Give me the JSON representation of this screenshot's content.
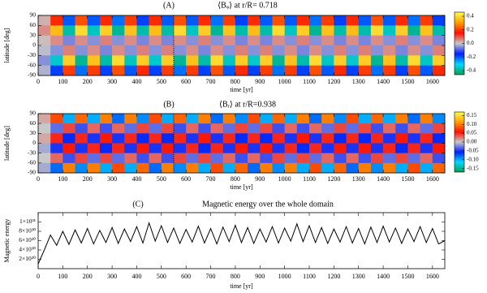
{
  "chart_data": [
    {
      "type": "heatmap",
      "label": "(A)",
      "title": "⟨Bᵩ⟩ at r/R= 0.718",
      "xlabel": "time [yr]",
      "ylabel": "latitude [deg]",
      "xlim": [
        0,
        1650
      ],
      "xticks": [
        0,
        100,
        200,
        300,
        400,
        500,
        600,
        700,
        800,
        900,
        1000,
        1100,
        1200,
        1300,
        1400,
        1500,
        1600
      ],
      "ylim": [
        -90,
        90
      ],
      "yticks": [
        -90,
        -60,
        -30,
        0,
        30,
        60,
        90
      ],
      "time_bins": [
        0,
        50,
        100,
        150,
        200,
        250,
        300,
        350,
        400,
        450,
        500,
        550,
        600,
        650,
        700,
        750,
        800,
        850,
        900,
        950,
        1000,
        1050,
        1100,
        1150,
        1200,
        1250,
        1300,
        1350,
        1400,
        1450,
        1500,
        1550,
        1600,
        1650
      ],
      "lat_edges": [
        90,
        60,
        30,
        0,
        -30,
        -60,
        -90
      ],
      "z": [
        [
          0.02,
          0.18,
          -0.2,
          0.22,
          -0.2,
          0.18,
          -0.22,
          0.2,
          -0.18,
          0.18,
          -0.2,
          0.22,
          -0.2,
          0.18,
          -0.22,
          0.2,
          -0.18,
          0.18,
          -0.2,
          0.22,
          -0.2,
          0.18,
          -0.22,
          0.2,
          -0.18,
          0.18,
          -0.2,
          0.22,
          -0.2,
          0.18,
          -0.22,
          0.2,
          -0.18
        ],
        [
          0.05,
          0.35,
          -0.38,
          0.4,
          -0.36,
          0.38,
          -0.4,
          0.36,
          -0.38,
          0.35,
          -0.38,
          0.4,
          -0.36,
          0.38,
          -0.4,
          0.36,
          -0.38,
          0.35,
          -0.38,
          0.4,
          -0.36,
          0.38,
          -0.4,
          0.36,
          -0.38,
          0.35,
          -0.38,
          0.4,
          -0.36,
          0.38,
          -0.4,
          0.36,
          -0.38
        ],
        [
          0.01,
          0.05,
          -0.06,
          0.05,
          -0.05,
          0.06,
          -0.05,
          0.05,
          -0.06,
          0.05,
          -0.06,
          0.05,
          -0.05,
          0.06,
          -0.05,
          0.05,
          -0.06,
          0.05,
          -0.06,
          0.05,
          -0.05,
          0.06,
          -0.05,
          0.05,
          -0.06,
          0.05,
          -0.06,
          0.05,
          -0.05,
          0.06,
          -0.05,
          0.05,
          -0.06
        ],
        [
          -0.01,
          -0.05,
          0.06,
          -0.05,
          0.05,
          -0.06,
          0.05,
          -0.05,
          0.06,
          -0.05,
          0.06,
          -0.05,
          0.05,
          -0.06,
          0.05,
          -0.05,
          0.06,
          -0.05,
          0.06,
          -0.05,
          0.05,
          -0.06,
          0.05,
          -0.05,
          0.06,
          -0.05,
          0.06,
          -0.05,
          0.05,
          -0.06,
          0.05,
          -0.05,
          0.06
        ],
        [
          -0.05,
          -0.35,
          0.38,
          -0.4,
          0.36,
          -0.38,
          0.4,
          -0.36,
          0.38,
          -0.35,
          0.38,
          -0.4,
          0.36,
          -0.38,
          0.4,
          -0.36,
          0.38,
          -0.35,
          0.38,
          -0.4,
          0.36,
          -0.38,
          0.4,
          -0.36,
          0.38,
          -0.35,
          0.38,
          -0.4,
          0.36,
          -0.38,
          0.4,
          -0.36,
          0.38
        ],
        [
          -0.02,
          -0.18,
          0.2,
          -0.22,
          0.2,
          -0.18,
          0.22,
          -0.2,
          0.18,
          -0.18,
          0.2,
          -0.22,
          0.2,
          -0.18,
          0.22,
          -0.2,
          0.18,
          -0.18,
          0.2,
          -0.22,
          0.2,
          -0.18,
          0.22,
          -0.2,
          0.18,
          -0.18,
          0.2,
          -0.22,
          0.2,
          -0.18,
          0.22,
          -0.2,
          0.18
        ]
      ],
      "zlim": [
        -0.46,
        0.46
      ],
      "zticks": [
        0.4,
        0.2,
        {
          "value": 0,
          "label": "0.0"
        },
        -0.2,
        -0.4
      ],
      "colors": [
        "#00a050",
        "#00d8ff",
        "#0020ff",
        "#c8c8c8",
        "#ff1000",
        "#ffa000",
        "#ffff50"
      ],
      "marker_x": 550
    },
    {
      "type": "heatmap",
      "label": "(B)",
      "title": "⟨Bᵣ⟩ at r/R=0.938",
      "xlabel": "time [yr]",
      "ylabel": "latitude [deg]",
      "xlim": [
        0,
        1650
      ],
      "xticks": [
        0,
        100,
        200,
        300,
        400,
        500,
        600,
        700,
        800,
        900,
        1000,
        1100,
        1200,
        1300,
        1400,
        1500,
        1600
      ],
      "ylim": [
        -90,
        90
      ],
      "yticks": [
        -90,
        -60,
        -30,
        0,
        30,
        60,
        90
      ],
      "time_bins": [
        0,
        50,
        100,
        150,
        200,
        250,
        300,
        350,
        400,
        450,
        500,
        550,
        600,
        650,
        700,
        750,
        800,
        850,
        900,
        950,
        1000,
        1050,
        1100,
        1150,
        1200,
        1250,
        1300,
        1350,
        1400,
        1450,
        1500,
        1550,
        1600,
        1650
      ],
      "lat_edges": [
        90,
        60,
        30,
        0,
        -30,
        -60,
        -90
      ],
      "z": [
        [
          0.01,
          0.08,
          -0.1,
          0.09,
          -0.1,
          0.1,
          -0.08,
          0.1,
          -0.09,
          0.08,
          -0.1,
          0.09,
          -0.1,
          0.1,
          -0.08,
          0.1,
          -0.09,
          0.08,
          -0.1,
          0.09,
          -0.1,
          0.1,
          -0.08,
          0.1,
          -0.09,
          0.08,
          -0.1,
          0.09,
          -0.1,
          0.1,
          -0.08,
          0.1,
          -0.09
        ],
        [
          0,
          -0.03,
          0.04,
          -0.04,
          0.03,
          -0.04,
          0.03,
          -0.03,
          0.04,
          -0.03,
          0.04,
          -0.04,
          0.03,
          -0.04,
          0.03,
          -0.03,
          0.04,
          -0.03,
          0.04,
          -0.04,
          0.03,
          -0.04,
          0.03,
          -0.03,
          0.04,
          -0.03,
          0.04,
          -0.04,
          0.03,
          -0.04,
          0.03,
          -0.03,
          0.04
        ],
        [
          0.01,
          0.05,
          -0.06,
          0.05,
          -0.05,
          0.06,
          -0.05,
          0.05,
          -0.06,
          0.05,
          -0.06,
          0.05,
          -0.05,
          0.06,
          -0.05,
          0.05,
          -0.06,
          0.05,
          -0.06,
          0.05,
          -0.05,
          0.06,
          -0.05,
          0.05,
          -0.06,
          0.05,
          -0.06,
          0.05,
          -0.05,
          0.06,
          -0.05,
          0.05,
          -0.06
        ],
        [
          -0.01,
          -0.05,
          0.06,
          -0.05,
          0.05,
          -0.06,
          0.05,
          -0.05,
          0.06,
          -0.05,
          0.06,
          -0.05,
          0.05,
          -0.06,
          0.05,
          -0.05,
          0.06,
          -0.05,
          0.06,
          -0.05,
          0.05,
          -0.06,
          0.05,
          -0.05,
          0.06,
          -0.05,
          0.06,
          -0.05,
          0.05,
          -0.06,
          0.05,
          -0.05,
          0.06
        ],
        [
          0,
          0.03,
          -0.04,
          0.04,
          -0.03,
          0.04,
          -0.03,
          0.03,
          -0.04,
          0.03,
          -0.04,
          0.04,
          -0.03,
          0.04,
          -0.03,
          0.03,
          -0.04,
          0.03,
          -0.04,
          0.04,
          -0.03,
          0.04,
          -0.03,
          0.03,
          -0.04,
          0.03,
          -0.04,
          0.04,
          -0.03,
          0.04,
          -0.03,
          0.03,
          -0.04
        ],
        [
          -0.01,
          -0.08,
          0.1,
          -0.09,
          0.1,
          -0.1,
          0.08,
          -0.1,
          0.09,
          -0.08,
          0.1,
          -0.09,
          0.1,
          -0.1,
          0.08,
          -0.1,
          0.09,
          -0.08,
          0.1,
          -0.09,
          0.1,
          -0.1,
          0.08,
          -0.1,
          0.09,
          -0.08,
          0.1,
          -0.09,
          0.1,
          -0.1,
          0.08,
          -0.1,
          0.09
        ]
      ],
      "zlim": [
        -0.17,
        0.17
      ],
      "zticks": [
        0.15,
        {
          "value": 0.1,
          "label": "0.10"
        },
        0.05,
        {
          "value": 0,
          "label": "0.00"
        },
        -0.05,
        {
          "value": -0.1,
          "label": "-0.10"
        },
        -0.15
      ],
      "colors": [
        "#00a050",
        "#00d8ff",
        "#0020ff",
        "#c8c8c8",
        "#ff1000",
        "#ffa000",
        "#ffff50"
      ],
      "marker_x": 550
    },
    {
      "type": "line",
      "label": "(C)",
      "title": "Magnetic energy over the whole domain",
      "xlabel": "time [yr]",
      "ylabel": "Magnetic energy",
      "xlim": [
        0,
        1650
      ],
      "xticks": [
        0,
        100,
        200,
        300,
        400,
        500,
        600,
        700,
        800,
        900,
        1000,
        1100,
        1200,
        1300,
        1400,
        1500,
        1600
      ],
      "ylim": [
        0,
        1.2e+31
      ],
      "yticks": [
        {
          "value": 2e+30,
          "label": "2×10³⁰"
        },
        {
          "value": 4e+30,
          "label": "4×10³⁰"
        },
        {
          "value": 6e+30,
          "label": "6×10³⁰"
        },
        {
          "value": 8e+30,
          "label": "8×10³⁰"
        },
        {
          "value": 1e+31,
          "label": "1×10³¹"
        }
      ],
      "color": "#000000",
      "x": [
        0,
        25,
        50,
        75,
        100,
        125,
        150,
        175,
        200,
        225,
        250,
        275,
        300,
        325,
        350,
        375,
        400,
        425,
        450,
        475,
        500,
        525,
        550,
        575,
        600,
        625,
        650,
        675,
        700,
        725,
        750,
        775,
        800,
        825,
        850,
        875,
        900,
        925,
        950,
        975,
        1000,
        1025,
        1050,
        1075,
        1100,
        1125,
        1150,
        1175,
        1200,
        1225,
        1250,
        1275,
        1300,
        1325,
        1350,
        1375,
        1400,
        1425,
        1450,
        1475,
        1500,
        1525,
        1550,
        1575,
        1600,
        1625,
        1650
      ],
      "values": [
        1e+30,
        4e+30,
        7.2e+30,
        5e+30,
        8e+30,
        5.2e+30,
        8.3e+30,
        5.5e+30,
        8.6e+30,
        5.3e+30,
        8.2e+30,
        5.6e+30,
        8.8e+30,
        5.4e+30,
        8.5e+30,
        5.8e+30,
        9e+30,
        5.5e+30,
        9.8e+30,
        5.9e+30,
        9.2e+30,
        5.6e+30,
        8.7e+30,
        5.4e+30,
        8.4e+30,
        5.7e+30,
        9.1e+30,
        5.5e+30,
        8.6e+30,
        5.3e+30,
        8.9e+30,
        5.8e+30,
        9.3e+30,
        5.6e+30,
        8.8e+30,
        5.4e+30,
        8.5e+30,
        5.7e+30,
        9e+30,
        5.5e+30,
        8.7e+30,
        5.9e+30,
        9.6e+30,
        5.8e+30,
        9.2e+30,
        5.6e+30,
        8.8e+30,
        5.4e+30,
        8.5e+30,
        5.7e+30,
        9e+30,
        5.5e+30,
        8.6e+30,
        5.3e+30,
        8.9e+30,
        5.6e+30,
        9.1e+30,
        5.7e+30,
        8.7e+30,
        5.4e+30,
        8.5e+30,
        5.8e+30,
        9e+30,
        5.6e+30,
        8.6e+30,
        5.3e+30,
        6e+30
      ]
    }
  ]
}
